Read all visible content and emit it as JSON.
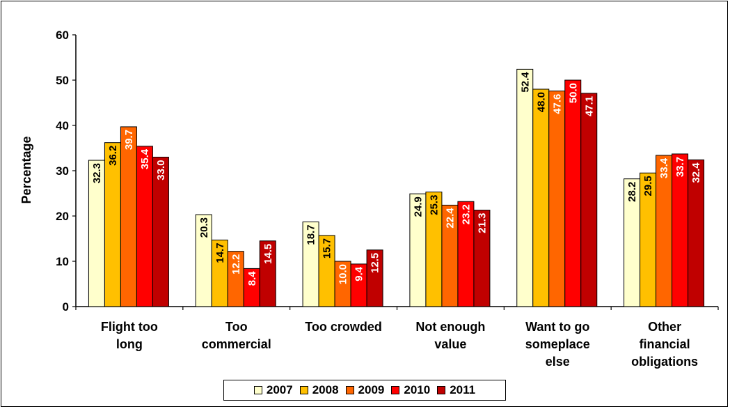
{
  "chart_data": {
    "type": "bar",
    "ylabel": "Percentage",
    "xlabel": "",
    "ylim": [
      0,
      60
    ],
    "yticks": [
      0,
      10,
      20,
      30,
      40,
      50,
      60
    ],
    "categories": [
      [
        "Flight too",
        "long"
      ],
      [
        "Too",
        "commercial"
      ],
      [
        "Too crowded"
      ],
      [
        "Not enough",
        "value"
      ],
      [
        "Want to go",
        "someplace",
        "else"
      ],
      [
        "Other",
        "financial",
        "obligations"
      ]
    ],
    "series": [
      {
        "name": "2007",
        "color": "#ffffcc",
        "label_color": "#000000",
        "values": [
          32.3,
          20.3,
          18.7,
          24.9,
          52.4,
          28.2
        ]
      },
      {
        "name": "2008",
        "color": "#ffc000",
        "label_color": "#000000",
        "values": [
          36.2,
          14.7,
          15.7,
          25.3,
          48.0,
          29.5
        ]
      },
      {
        "name": "2009",
        "color": "#ff6600",
        "label_color": "#ffffff",
        "values": [
          39.7,
          12.2,
          10.0,
          22.4,
          47.6,
          33.4
        ]
      },
      {
        "name": "2010",
        "color": "#ff0000",
        "label_color": "#ffffff",
        "values": [
          35.4,
          8.4,
          9.4,
          23.2,
          50.0,
          33.7
        ]
      },
      {
        "name": "2011",
        "color": "#c00000",
        "label_color": "#ffffff",
        "values": [
          33.0,
          14.5,
          12.5,
          21.3,
          47.1,
          32.4
        ]
      }
    ],
    "legend_position": "bottom",
    "grid": false
  }
}
